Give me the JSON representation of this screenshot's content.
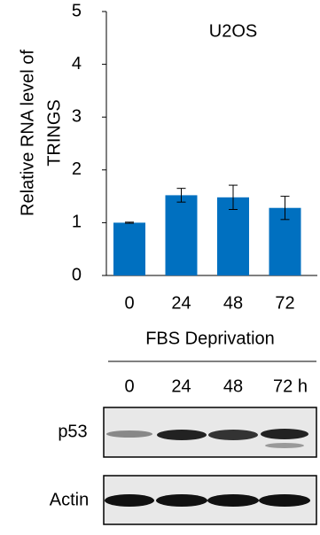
{
  "chart_data": {
    "type": "bar",
    "y_label": [
      "Relative RNA level of",
      "TRINGS"
    ],
    "annotation": "U2OS",
    "categories": [
      "0",
      "24",
      "48",
      "72"
    ],
    "values": [
      1.0,
      1.52,
      1.48,
      1.28
    ],
    "errors": [
      0.01,
      0.13,
      0.23,
      0.22
    ],
    "color": "#0070c0",
    "ylim": [
      0,
      5
    ],
    "yticks": [
      0,
      1,
      2,
      3,
      4,
      5
    ]
  },
  "blot": {
    "title": "FBS Deprivation",
    "lanes": [
      "0",
      "24",
      "48",
      "72 h"
    ],
    "rows": [
      "p53",
      "Actin"
    ]
  }
}
